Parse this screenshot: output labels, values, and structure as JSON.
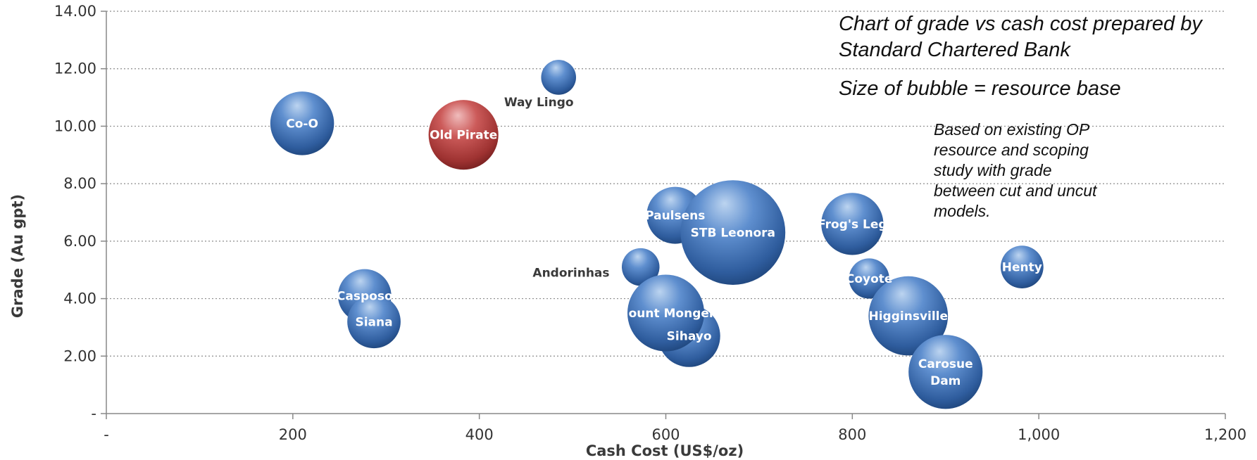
{
  "chart_data": {
    "type": "bubble",
    "notes": {
      "title": "Chart of grade vs cash cost prepared by Standard Chartered Bank",
      "size_note": "Size of bubble = resource base",
      "basis_note": "Based on existing OP resource and scoping study with grade between cut and uncut models."
    },
    "xlabel": "Cash Cost (US$/oz)",
    "ylabel": "Grade (Au gpt)",
    "xlim": [
      0,
      1200
    ],
    "ylim": [
      0,
      14
    ],
    "x_ticks": [
      {
        "value": 0,
        "label": "-"
      },
      {
        "value": 200,
        "label": "200"
      },
      {
        "value": 400,
        "label": "400"
      },
      {
        "value": 600,
        "label": "600"
      },
      {
        "value": 800,
        "label": "800"
      },
      {
        "value": 1000,
        "label": "1,000"
      },
      {
        "value": 1200,
        "label": "1,200"
      }
    ],
    "y_ticks": [
      {
        "value": 0,
        "label": "-"
      },
      {
        "value": 2,
        "label": "2.00"
      },
      {
        "value": 4,
        "label": "4.00"
      },
      {
        "value": 6,
        "label": "6.00"
      },
      {
        "value": 8,
        "label": "8.00"
      },
      {
        "value": 10,
        "label": "10.00"
      },
      {
        "value": 12,
        "label": "12.00"
      },
      {
        "value": 14,
        "label": "14.00"
      }
    ],
    "grid": "horizontal dotted",
    "colors": {
      "default": "#3f72b5",
      "highlight": "#b4403f"
    },
    "bubbles": [
      {
        "label": "Way Lingo",
        "x": 485,
        "y": 11.7,
        "size": 0.6,
        "label_pos": "below-left"
      },
      {
        "label": "Co-O",
        "x": 210,
        "y": 10.1,
        "size": 2.0,
        "label_pos": "inside"
      },
      {
        "label": "Old Pirate",
        "x": 383,
        "y": 9.7,
        "size": 2.4,
        "label_pos": "inside",
        "highlight": true
      },
      {
        "label": "Paulsens",
        "x": 610,
        "y": 6.9,
        "size": 1.6,
        "label_pos": "inside"
      },
      {
        "label": "STB Leonora",
        "x": 672,
        "y": 6.3,
        "size": 5.4,
        "label_pos": "inside"
      },
      {
        "label": "Frog's Leg",
        "x": 800,
        "y": 6.6,
        "size": 1.9,
        "label_pos": "inside"
      },
      {
        "label": "Henty",
        "x": 982,
        "y": 5.1,
        "size": 0.9,
        "label_pos": "inside"
      },
      {
        "label": "Andorinhas",
        "x": 573,
        "y": 5.1,
        "size": 0.7,
        "label_pos": "left"
      },
      {
        "label": "Coyote",
        "x": 818,
        "y": 4.7,
        "size": 0.8,
        "label_pos": "inside"
      },
      {
        "label": "Casposo",
        "x": 277,
        "y": 4.1,
        "size": 1.4,
        "label_pos": "inside"
      },
      {
        "label": "Siana",
        "x": 287,
        "y": 3.2,
        "size": 1.4,
        "label_pos": "inside"
      },
      {
        "label": "Sihayo",
        "x": 625,
        "y": 2.7,
        "size": 1.9,
        "label_pos": "inside"
      },
      {
        "label": "Mount Monger",
        "x": 600,
        "y": 3.5,
        "size": 2.9,
        "label_pos": "inside"
      },
      {
        "label": "Higginsville",
        "x": 860,
        "y": 3.4,
        "size": 3.1,
        "label_pos": "inside"
      },
      {
        "label": "Carosue Dam",
        "x": 900,
        "y": 1.45,
        "size": 2.7,
        "label_pos": "inside",
        "label_lines": [
          "Carosue",
          "Dam"
        ]
      }
    ]
  }
}
